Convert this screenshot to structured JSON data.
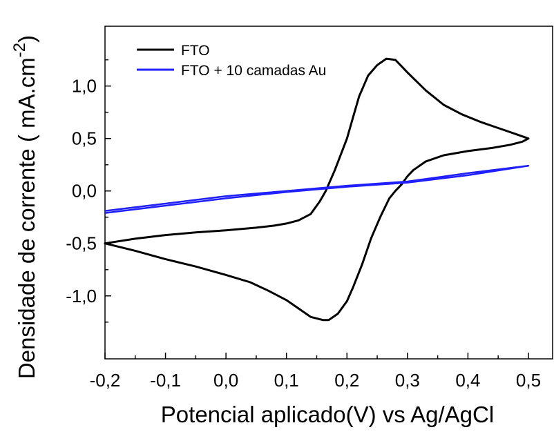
{
  "chart_data": {
    "type": "line",
    "xlabel": "Potencial aplicado(V) vs  Ag/AgCl",
    "ylabel": {
      "main": "Densidade de corrente (  mA.cm",
      "superscript": "-2",
      "close": ")"
    },
    "xlim": [
      -0.2,
      0.54
    ],
    "ylim": [
      -1.6,
      1.57
    ],
    "xticks": [
      {
        "value": -0.2,
        "label": "-0,2"
      },
      {
        "value": -0.1,
        "label": "-0,1"
      },
      {
        "value": 0.0,
        "label": "0,0"
      },
      {
        "value": 0.1,
        "label": "0,1"
      },
      {
        "value": 0.2,
        "label": "0,2"
      },
      {
        "value": 0.3,
        "label": "0,3"
      },
      {
        "value": 0.4,
        "label": "0,4"
      },
      {
        "value": 0.5,
        "label": "0,5"
      }
    ],
    "yticks": [
      {
        "value": 1.0,
        "label": "1,0"
      },
      {
        "value": 0.5,
        "label": "0,5"
      },
      {
        "value": 0.0,
        "label": "0,0"
      },
      {
        "value": -0.5,
        "label": "-0,5"
      },
      {
        "value": -1.0,
        "label": "-1,0"
      }
    ],
    "grid": false,
    "legend_position": "top-left",
    "series": [
      {
        "name": "FTO",
        "color": "#000000",
        "points": [
          [
            -0.2,
            -0.5
          ],
          [
            -0.15,
            -0.455
          ],
          [
            -0.1,
            -0.42
          ],
          [
            -0.05,
            -0.395
          ],
          [
            0.0,
            -0.375
          ],
          [
            0.05,
            -0.35
          ],
          [
            0.08,
            -0.33
          ],
          [
            0.1,
            -0.31
          ],
          [
            0.12,
            -0.28
          ],
          [
            0.14,
            -0.22
          ],
          [
            0.155,
            -0.1
          ],
          [
            0.165,
            0.0
          ],
          [
            0.18,
            0.2
          ],
          [
            0.2,
            0.5
          ],
          [
            0.21,
            0.7
          ],
          [
            0.22,
            0.9
          ],
          [
            0.235,
            1.1
          ],
          [
            0.25,
            1.2
          ],
          [
            0.265,
            1.26
          ],
          [
            0.28,
            1.25
          ],
          [
            0.3,
            1.13
          ],
          [
            0.33,
            0.96
          ],
          [
            0.36,
            0.82
          ],
          [
            0.39,
            0.73
          ],
          [
            0.42,
            0.66
          ],
          [
            0.45,
            0.6
          ],
          [
            0.48,
            0.54
          ],
          [
            0.5,
            0.5
          ],
          [
            0.49,
            0.47
          ],
          [
            0.47,
            0.44
          ],
          [
            0.44,
            0.41
          ],
          [
            0.4,
            0.38
          ],
          [
            0.36,
            0.34
          ],
          [
            0.33,
            0.28
          ],
          [
            0.31,
            0.2
          ],
          [
            0.3,
            0.14
          ],
          [
            0.29,
            0.06
          ],
          [
            0.28,
            0.0
          ],
          [
            0.27,
            -0.07
          ],
          [
            0.255,
            -0.25
          ],
          [
            0.24,
            -0.45
          ],
          [
            0.225,
            -0.7
          ],
          [
            0.21,
            -0.92
          ],
          [
            0.2,
            -1.05
          ],
          [
            0.185,
            -1.17
          ],
          [
            0.17,
            -1.23
          ],
          [
            0.16,
            -1.23
          ],
          [
            0.14,
            -1.2
          ],
          [
            0.12,
            -1.12
          ],
          [
            0.1,
            -1.04
          ],
          [
            0.07,
            -0.95
          ],
          [
            0.04,
            -0.87
          ],
          [
            0.0,
            -0.8
          ],
          [
            -0.05,
            -0.72
          ],
          [
            -0.1,
            -0.65
          ],
          [
            -0.15,
            -0.57
          ],
          [
            -0.2,
            -0.5
          ]
        ]
      },
      {
        "name": "FTO + 10 camadas Au",
        "color": "#1f1fff",
        "points": [
          [
            -0.2,
            -0.21
          ],
          [
            -0.1,
            -0.14
          ],
          [
            0.0,
            -0.07
          ],
          [
            0.1,
            -0.01
          ],
          [
            0.2,
            0.04
          ],
          [
            0.3,
            0.08
          ],
          [
            0.4,
            0.15
          ],
          [
            0.5,
            0.24
          ],
          [
            0.4,
            0.17
          ],
          [
            0.3,
            0.09
          ],
          [
            0.2,
            0.05
          ],
          [
            0.1,
            0.0
          ],
          [
            0.0,
            -0.05
          ],
          [
            -0.1,
            -0.12
          ],
          [
            -0.2,
            -0.19
          ]
        ]
      }
    ]
  }
}
